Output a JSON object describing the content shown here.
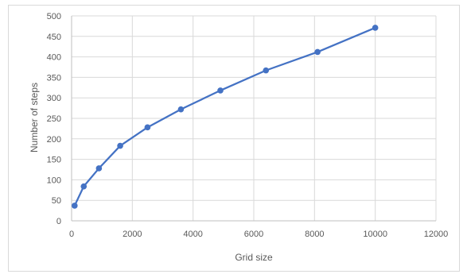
{
  "chart_data": {
    "type": "line",
    "title": "",
    "xlabel": "Grid size",
    "ylabel": "Number  of steps",
    "xlim": [
      0,
      12000
    ],
    "ylim": [
      0,
      500
    ],
    "x_ticks": [
      0,
      2000,
      4000,
      6000,
      8000,
      10000,
      12000
    ],
    "y_ticks": [
      0,
      50,
      100,
      150,
      200,
      250,
      300,
      350,
      400,
      450,
      500
    ],
    "grid": true,
    "legend": "none",
    "series": [
      {
        "color": "#4472c4",
        "marker": "circle",
        "x": [
          100,
          400,
          900,
          1600,
          2500,
          3600,
          4900,
          6400,
          8100,
          10000
        ],
        "y": [
          37,
          84,
          128,
          183,
          228,
          272,
          318,
          367,
          412,
          471
        ]
      }
    ]
  }
}
